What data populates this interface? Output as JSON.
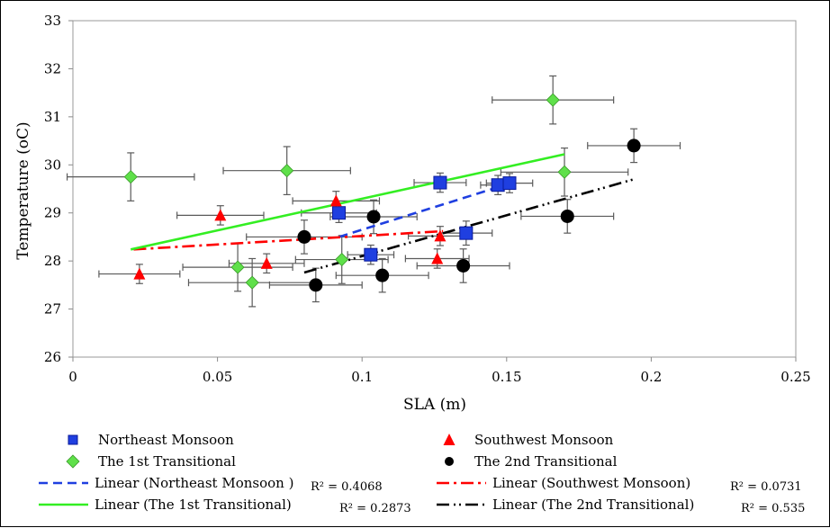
{
  "chart_data": {
    "type": "scatter",
    "xlabel": "SLA (m)",
    "ylabel": "Temperature (oC)",
    "xlim": [
      0,
      0.25
    ],
    "ylim": [
      26,
      33
    ],
    "x_ticks": [
      "0",
      "0.05",
      "0.1",
      "0.15",
      "0.2",
      "0.25"
    ],
    "y_ticks": [
      "26",
      "27",
      "28",
      "29",
      "30",
      "31",
      "32",
      "33"
    ],
    "grid": false,
    "legend_position": "bottom",
    "series": [
      {
        "name": "Northeast Monsoon",
        "marker": "square",
        "color": "#1f3fe0",
        "points": [
          {
            "x": 0.092,
            "y": 29.0,
            "xerr": 0.013,
            "yerr": 0.2
          },
          {
            "x": 0.103,
            "y": 28.13,
            "xerr": 0.008,
            "yerr": 0.2
          },
          {
            "x": 0.127,
            "y": 29.63,
            "xerr": 0.009,
            "yerr": 0.2
          },
          {
            "x": 0.136,
            "y": 28.58,
            "xerr": 0.009,
            "yerr": 0.25
          },
          {
            "x": 0.147,
            "y": 29.58,
            "xerr": 0.006,
            "yerr": 0.2
          },
          {
            "x": 0.151,
            "y": 29.62,
            "xerr": 0.008,
            "yerr": 0.2
          }
        ]
      },
      {
        "name": "Southwest Monsoon",
        "marker": "triangle",
        "color": "#ff0000",
        "points": [
          {
            "x": 0.023,
            "y": 27.73,
            "xerr": 0.014,
            "yerr": 0.2
          },
          {
            "x": 0.051,
            "y": 28.95,
            "xerr": 0.015,
            "yerr": 0.2
          },
          {
            "x": 0.067,
            "y": 27.95,
            "xerr": 0.013,
            "yerr": 0.2
          },
          {
            "x": 0.091,
            "y": 29.25,
            "xerr": 0.015,
            "yerr": 0.2
          },
          {
            "x": 0.126,
            "y": 28.05,
            "xerr": 0.011,
            "yerr": 0.2
          },
          {
            "x": 0.127,
            "y": 28.52,
            "xerr": 0.011,
            "yerr": 0.2
          }
        ]
      },
      {
        "name": "The 1st Transitional",
        "marker": "diamond",
        "color": "#5fe04a",
        "points": [
          {
            "x": 0.02,
            "y": 29.75,
            "xerr": 0.022,
            "yerr": 0.5
          },
          {
            "x": 0.057,
            "y": 27.87,
            "xerr": 0.019,
            "yerr": 0.5
          },
          {
            "x": 0.062,
            "y": 27.55,
            "xerr": 0.022,
            "yerr": 0.5
          },
          {
            "x": 0.074,
            "y": 29.88,
            "xerr": 0.022,
            "yerr": 0.5
          },
          {
            "x": 0.093,
            "y": 28.03,
            "xerr": 0.016,
            "yerr": 0.5
          },
          {
            "x": 0.166,
            "y": 31.35,
            "xerr": 0.021,
            "yerr": 0.5
          },
          {
            "x": 0.17,
            "y": 29.85,
            "xerr": 0.022,
            "yerr": 0.5
          }
        ]
      },
      {
        "name": "The 2nd Transitional",
        "marker": "circle",
        "color": "#000000",
        "points": [
          {
            "x": 0.08,
            "y": 28.5,
            "xerr": 0.02,
            "yerr": 0.35
          },
          {
            "x": 0.084,
            "y": 27.5,
            "xerr": 0.016,
            "yerr": 0.35
          },
          {
            "x": 0.104,
            "y": 28.92,
            "xerr": 0.015,
            "yerr": 0.35
          },
          {
            "x": 0.107,
            "y": 27.7,
            "xerr": 0.016,
            "yerr": 0.35
          },
          {
            "x": 0.135,
            "y": 27.9,
            "xerr": 0.016,
            "yerr": 0.35
          },
          {
            "x": 0.171,
            "y": 28.93,
            "xerr": 0.016,
            "yerr": 0.35
          },
          {
            "x": 0.194,
            "y": 30.4,
            "xerr": 0.016,
            "yerr": 0.35
          }
        ]
      }
    ],
    "trendlines": [
      {
        "name": "Linear (Northeast Monsoon )",
        "r2": "R² = 0.4068",
        "style": "dashed",
        "color": "#1f3fe0",
        "x": [
          0.092,
          0.151
        ],
        "y": [
          28.5,
          29.61
        ]
      },
      {
        "name": "Linear (Southwest Monsoon)",
        "r2": "R² = 0.0731",
        "style": "dashdot",
        "color": "#ff0000",
        "x": [
          0.021,
          0.128
        ],
        "y": [
          28.24,
          28.62
        ]
      },
      {
        "name": "Linear (The 1st Transitional)",
        "r2": "R² = 0.2873",
        "style": "solid",
        "color": "#33ee22",
        "x": [
          0.02,
          0.17
        ],
        "y": [
          28.24,
          30.22
        ]
      },
      {
        "name": "Linear (The 2nd Transitional)",
        "r2": "R² = 0.535",
        "style": "dashdotdot",
        "color": "#000000",
        "x": [
          0.08,
          0.194
        ],
        "y": [
          27.76,
          29.7
        ]
      }
    ]
  }
}
